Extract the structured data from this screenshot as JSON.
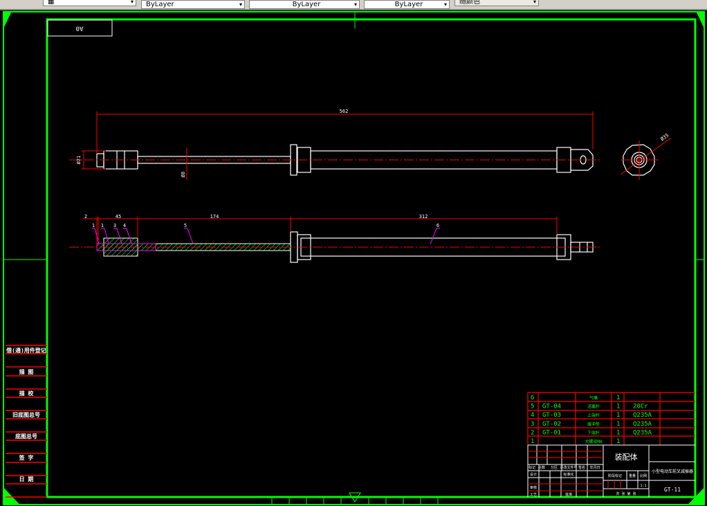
{
  "toolbar": {
    "dropdowns": [
      {
        "value": "",
        "icon": "layer-icon"
      },
      {
        "value": "ByLayer"
      },
      {
        "value": "ByLayer"
      },
      {
        "value": "ByLayer"
      },
      {
        "value": "随颜色"
      }
    ]
  },
  "sheet": {
    "size_label": "A0"
  },
  "colors": {
    "frame": "#00ff00",
    "dimension": "#ff0000",
    "geometry": "#ffffff",
    "leader": "#ff00ff",
    "hatch": "#00ff00"
  },
  "front_view": {
    "overall_length": "562",
    "end_diameter": "Ø21",
    "rod_diameter": "Ø8",
    "end_view_diameter": "Ø35"
  },
  "section_view": {
    "dims": [
      "2",
      "45",
      "174",
      "312"
    ],
    "balloons": [
      "1",
      "1",
      "3",
      "4",
      "5",
      "6"
    ]
  },
  "side_panel": {
    "labels": [
      "借(通)用件登记",
      "描 图",
      "描 校",
      "旧底图总号",
      "底图总号",
      "签 字",
      "日 期"
    ]
  },
  "parts_list": [
    {
      "no": "6",
      "code": "",
      "name": "气嘴",
      "qty": "1",
      "material": ""
    },
    {
      "no": "5",
      "code": "GT-04",
      "name": "活塞杆",
      "qty": "1",
      "material": "20Cr"
    },
    {
      "no": "4",
      "code": "GT-03",
      "name": "上端杆",
      "qty": "1",
      "material": "Q235A"
    },
    {
      "no": "3",
      "code": "GT-02",
      "name": "缓冲垫",
      "qty": "1",
      "material": "Q235A"
    },
    {
      "no": "2",
      "code": "GT-01",
      "name": "下端杆",
      "qty": "1",
      "material": "Q235A"
    },
    {
      "no": "1",
      "code": "",
      "name": "大螺母M8",
      "qty": "1",
      "material": ""
    }
  ],
  "title_block": {
    "drawing_name": "装配体",
    "product_name": "小型电动车前叉减振器",
    "drawing_no": "GT-11",
    "headers": [
      "标记",
      "处数",
      "分区",
      "更改文件号",
      "签名",
      "年月日"
    ],
    "row_labels": [
      "设计",
      "审核",
      "工艺"
    ],
    "mid_labels": [
      "标准化",
      "批准"
    ],
    "stage_labels": [
      "阶段标记",
      "重量",
      "比例"
    ],
    "scale": "1:1",
    "sheet_labels": "共 张 第 张"
  }
}
